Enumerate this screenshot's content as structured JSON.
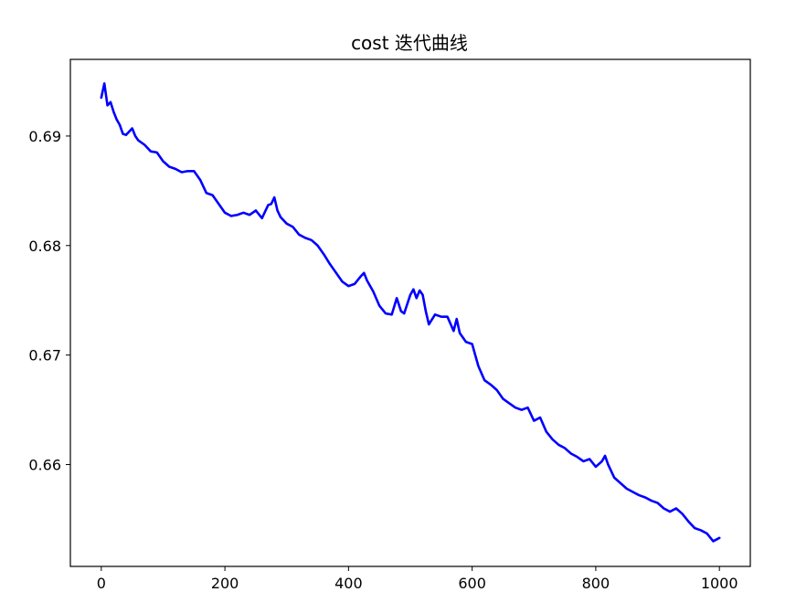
{
  "chart_data": {
    "type": "line",
    "title": "cost 迭代曲线",
    "xlabel": "",
    "ylabel": "",
    "xlim": [
      -50,
      1050
    ],
    "ylim": [
      0.6507,
      0.697
    ],
    "xticks": [
      0,
      200,
      400,
      600,
      800,
      1000
    ],
    "yticks": [
      0.66,
      0.67,
      0.68,
      0.69
    ],
    "xtick_labels": [
      "0",
      "200",
      "400",
      "600",
      "800",
      "1000"
    ],
    "ytick_labels": [
      "0.66",
      "0.67",
      "0.68",
      "0.69"
    ],
    "grid": false,
    "legend": "none",
    "series": [
      {
        "color": "#0000ff",
        "x": [
          0,
          5,
          10,
          15,
          20,
          25,
          30,
          35,
          40,
          45,
          50,
          55,
          60,
          70,
          80,
          90,
          100,
          110,
          120,
          130,
          140,
          150,
          160,
          170,
          180,
          190,
          200,
          210,
          220,
          230,
          240,
          250,
          260,
          270,
          275,
          280,
          285,
          290,
          300,
          310,
          320,
          330,
          340,
          350,
          360,
          370,
          380,
          390,
          400,
          410,
          420,
          425,
          430,
          440,
          450,
          460,
          470,
          478,
          485,
          490,
          500,
          505,
          510,
          515,
          520,
          525,
          530,
          540,
          550,
          560,
          570,
          575,
          580,
          590,
          600,
          610,
          620,
          630,
          640,
          650,
          660,
          670,
          680,
          690,
          700,
          710,
          720,
          730,
          740,
          750,
          760,
          770,
          780,
          790,
          800,
          810,
          815,
          820,
          830,
          840,
          850,
          860,
          870,
          880,
          890,
          900,
          910,
          920,
          930,
          940,
          950,
          960,
          970,
          980,
          990,
          1000
        ],
        "y": [
          0.6935,
          0.6948,
          0.6928,
          0.6931,
          0.6922,
          0.6915,
          0.691,
          0.6902,
          0.6901,
          0.6904,
          0.6907,
          0.69,
          0.6896,
          0.6892,
          0.6886,
          0.6885,
          0.6877,
          0.6872,
          0.687,
          0.6867,
          0.6868,
          0.6868,
          0.686,
          0.6848,
          0.6846,
          0.6838,
          0.683,
          0.6827,
          0.6828,
          0.683,
          0.6828,
          0.6832,
          0.6825,
          0.6837,
          0.6838,
          0.6844,
          0.6832,
          0.6826,
          0.682,
          0.6817,
          0.681,
          0.6807,
          0.6805,
          0.68,
          0.6792,
          0.6783,
          0.6775,
          0.6767,
          0.6763,
          0.6765,
          0.6772,
          0.6775,
          0.6768,
          0.6758,
          0.6745,
          0.6738,
          0.6737,
          0.6752,
          0.674,
          0.6738,
          0.6755,
          0.676,
          0.6752,
          0.6759,
          0.6755,
          0.674,
          0.6728,
          0.6737,
          0.6735,
          0.6735,
          0.6722,
          0.6733,
          0.672,
          0.6712,
          0.671,
          0.669,
          0.6677,
          0.6673,
          0.6668,
          0.666,
          0.6656,
          0.6652,
          0.665,
          0.6652,
          0.664,
          0.6643,
          0.663,
          0.6623,
          0.6618,
          0.6615,
          0.661,
          0.6607,
          0.6603,
          0.6605,
          0.6598,
          0.6603,
          0.6608,
          0.66,
          0.6588,
          0.6583,
          0.6578,
          0.6575,
          0.6572,
          0.657,
          0.6567,
          0.6565,
          0.656,
          0.6557,
          0.656,
          0.6555,
          0.6548,
          0.6542,
          0.654,
          0.6537,
          0.653,
          0.6533
        ]
      }
    ]
  }
}
